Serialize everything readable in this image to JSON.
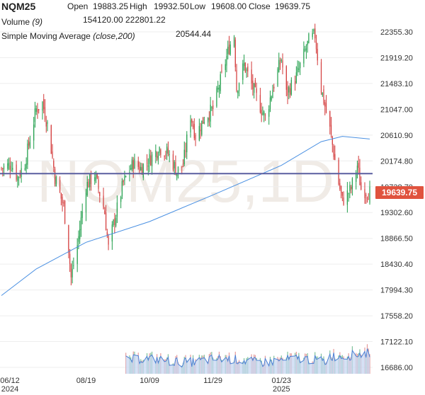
{
  "header": {
    "symbol": "NQM25",
    "open_label": "Open",
    "open": "19883.25",
    "high_label": "High",
    "high": "19932.50",
    "low_label": "Low",
    "low": "19608.00",
    "close_label": "Close",
    "close": "19639.75",
    "volume_label": "Volume",
    "volume_param": "(9)",
    "volume_value": "154120.00",
    "volume_ma": "222801.22",
    "sma_label": "Simple Moving Average",
    "sma_param": "(close,200)",
    "sma_value": "20544.44"
  },
  "watermark": "NQM25,1D",
  "colors": {
    "up": "#1f9e4a",
    "down": "#d33a3a",
    "sma": "#4a90e2",
    "price_line": "#5a5fa0",
    "last_price_bg": "#e0533e",
    "volume_fill": "#c7d7f2",
    "volume_line": "#4a7fd4",
    "watermark": "#f0ebe6",
    "grid": "#eeeeee"
  },
  "chart_data": {
    "type": "candlestick",
    "y_ticks": [
      "22355.30",
      "21919.20",
      "21483.10",
      "21047.00",
      "20610.90",
      "20174.80",
      "19738.70",
      "19302.60",
      "18866.50",
      "18430.40",
      "17994.30",
      "17558.20",
      "17122.10",
      "16686.00"
    ],
    "ylim": [
      16686.0,
      22355.3
    ],
    "x_ticks": [
      {
        "date": "2024-06-12",
        "label": "06/12",
        "sub": "2024"
      },
      {
        "date": "2024-08-19",
        "label": "08/19",
        "sub": ""
      },
      {
        "date": "2024-10-09",
        "label": "10/09",
        "sub": ""
      },
      {
        "date": "2024-11-29",
        "label": "11/29",
        "sub": ""
      },
      {
        "date": "2025-01-23",
        "label": "01/23",
        "sub": "2025"
      }
    ],
    "xlim": [
      "2024-06-12",
      "2025-04-04"
    ],
    "last_price": 19639.75,
    "last_price_label": "19639.75",
    "price_line_value": 19960,
    "anchors": [
      {
        "date": "2024-06-12",
        "close": 20050
      },
      {
        "date": "2024-06-20",
        "close": 20120
      },
      {
        "date": "2024-06-25",
        "close": 19900
      },
      {
        "date": "2024-07-01",
        "close": 20150
      },
      {
        "date": "2024-07-10",
        "close": 21050
      },
      {
        "date": "2024-07-15",
        "close": 21150
      },
      {
        "date": "2024-07-20",
        "close": 20700
      },
      {
        "date": "2024-07-25",
        "close": 19900
      },
      {
        "date": "2024-08-01",
        "close": 19400
      },
      {
        "date": "2024-08-05",
        "close": 18700
      },
      {
        "date": "2024-08-07",
        "close": 18200
      },
      {
        "date": "2024-08-12",
        "close": 18750
      },
      {
        "date": "2024-08-19",
        "close": 19750
      },
      {
        "date": "2024-08-26",
        "close": 19950
      },
      {
        "date": "2024-09-03",
        "close": 19300
      },
      {
        "date": "2024-09-06",
        "close": 18700
      },
      {
        "date": "2024-09-10",
        "close": 19100
      },
      {
        "date": "2024-09-18",
        "close": 19800
      },
      {
        "date": "2024-09-26",
        "close": 20150
      },
      {
        "date": "2024-10-02",
        "close": 20050
      },
      {
        "date": "2024-10-09",
        "close": 20200
      },
      {
        "date": "2024-10-17",
        "close": 20400
      },
      {
        "date": "2024-10-24",
        "close": 20300
      },
      {
        "date": "2024-10-31",
        "close": 20000
      },
      {
        "date": "2024-11-05",
        "close": 20100
      },
      {
        "date": "2024-11-11",
        "close": 20950
      },
      {
        "date": "2024-11-15",
        "close": 20600
      },
      {
        "date": "2024-11-22",
        "close": 20900
      },
      {
        "date": "2024-11-29",
        "close": 21050
      },
      {
        "date": "2024-12-06",
        "close": 21600
      },
      {
        "date": "2024-12-12",
        "close": 22100
      },
      {
        "date": "2024-12-16",
        "close": 22300
      },
      {
        "date": "2024-12-18",
        "close": 21400
      },
      {
        "date": "2024-12-24",
        "close": 21800
      },
      {
        "date": "2025-01-02",
        "close": 21300
      },
      {
        "date": "2025-01-10",
        "close": 20900
      },
      {
        "date": "2025-01-16",
        "close": 21400
      },
      {
        "date": "2025-01-23",
        "close": 21900
      },
      {
        "date": "2025-01-27",
        "close": 21300
      },
      {
        "date": "2025-02-04",
        "close": 21600
      },
      {
        "date": "2025-02-14",
        "close": 22200
      },
      {
        "date": "2025-02-19",
        "close": 22300
      },
      {
        "date": "2025-02-24",
        "close": 21400
      },
      {
        "date": "2025-03-03",
        "close": 20700
      },
      {
        "date": "2025-03-10",
        "close": 19800
      },
      {
        "date": "2025-03-13",
        "close": 19500
      },
      {
        "date": "2025-03-20",
        "close": 19700
      },
      {
        "date": "2025-03-25",
        "close": 20100
      },
      {
        "date": "2025-03-28",
        "close": 19700
      },
      {
        "date": "2025-04-04",
        "close": 19640
      }
    ],
    "sma_anchors": [
      {
        "date": "2024-06-12",
        "close": 17900
      },
      {
        "date": "2024-07-10",
        "close": 18350
      },
      {
        "date": "2024-08-19",
        "close": 18800
      },
      {
        "date": "2024-10-09",
        "close": 19150
      },
      {
        "date": "2024-11-29",
        "close": 19600
      },
      {
        "date": "2025-01-23",
        "close": 20100
      },
      {
        "date": "2025-02-24",
        "close": 20500
      },
      {
        "date": "2025-03-13",
        "close": 20590
      },
      {
        "date": "2025-04-04",
        "close": 20544
      }
    ]
  }
}
